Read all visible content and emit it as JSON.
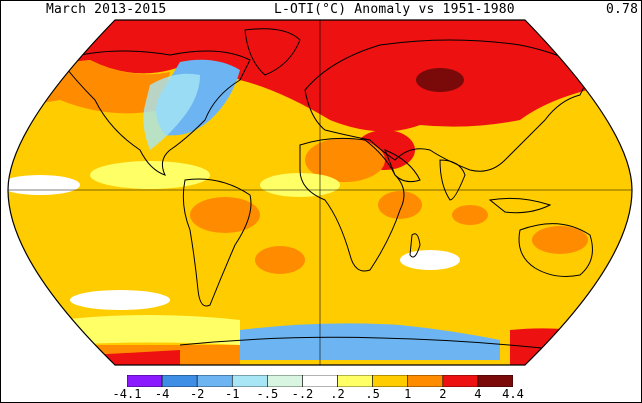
{
  "header": {
    "left": "March 2013-2015",
    "center": "L-OTI(°C) Anomaly vs 1951-1980",
    "right": "0.78"
  },
  "legend": {
    "ticks": [
      "-4.1",
      "-4",
      "-2",
      "-1",
      "-.5",
      "-.2",
      ".2",
      ".5",
      "1",
      "2",
      "4",
      "4.4"
    ],
    "bins": [
      {
        "color": "#8b1aff",
        "range": "-4.1 to -4"
      },
      {
        "color": "#3f8ee6",
        "range": "-4 to -2"
      },
      {
        "color": "#6cb5f2",
        "range": "-2 to -1"
      },
      {
        "color": "#a8e6f5",
        "range": "-1 to -.5"
      },
      {
        "color": "#d7f5e0",
        "range": "-.5 to -.2"
      },
      {
        "color": "#ffffff",
        "range": "-.2 to .2"
      },
      {
        "color": "#ffff66",
        "range": ".2 to .5"
      },
      {
        "color": "#ffcc00",
        "range": ".5 to 1"
      },
      {
        "color": "#ff8c00",
        "range": "1 to 2"
      },
      {
        "color": "#ee1111",
        "range": "2 to 4"
      },
      {
        "color": "#7a0a0a",
        "range": "4 to 4.4"
      }
    ]
  },
  "map": {
    "projection": "Robinson",
    "land_border_color": "#000000",
    "gridline_color": "#000000",
    "base_color": "#ffcc00",
    "anomaly_regions": [
      {
        "region": "arctic-siberia-europe",
        "color": "#ee1111"
      },
      {
        "region": "central-siberia-core",
        "color": "#7a0a0a"
      },
      {
        "region": "eastern-north-america",
        "color": "#6cb5f2"
      },
      {
        "region": "north-africa-middle-east",
        "color": "#ee1111"
      },
      {
        "region": "southern-ocean",
        "color": "#6cb5f2"
      },
      {
        "region": "antarctica-pacific-sector",
        "color": "#ff8c00"
      },
      {
        "region": "western-pacific",
        "color": "#ffcc00"
      }
    ]
  }
}
